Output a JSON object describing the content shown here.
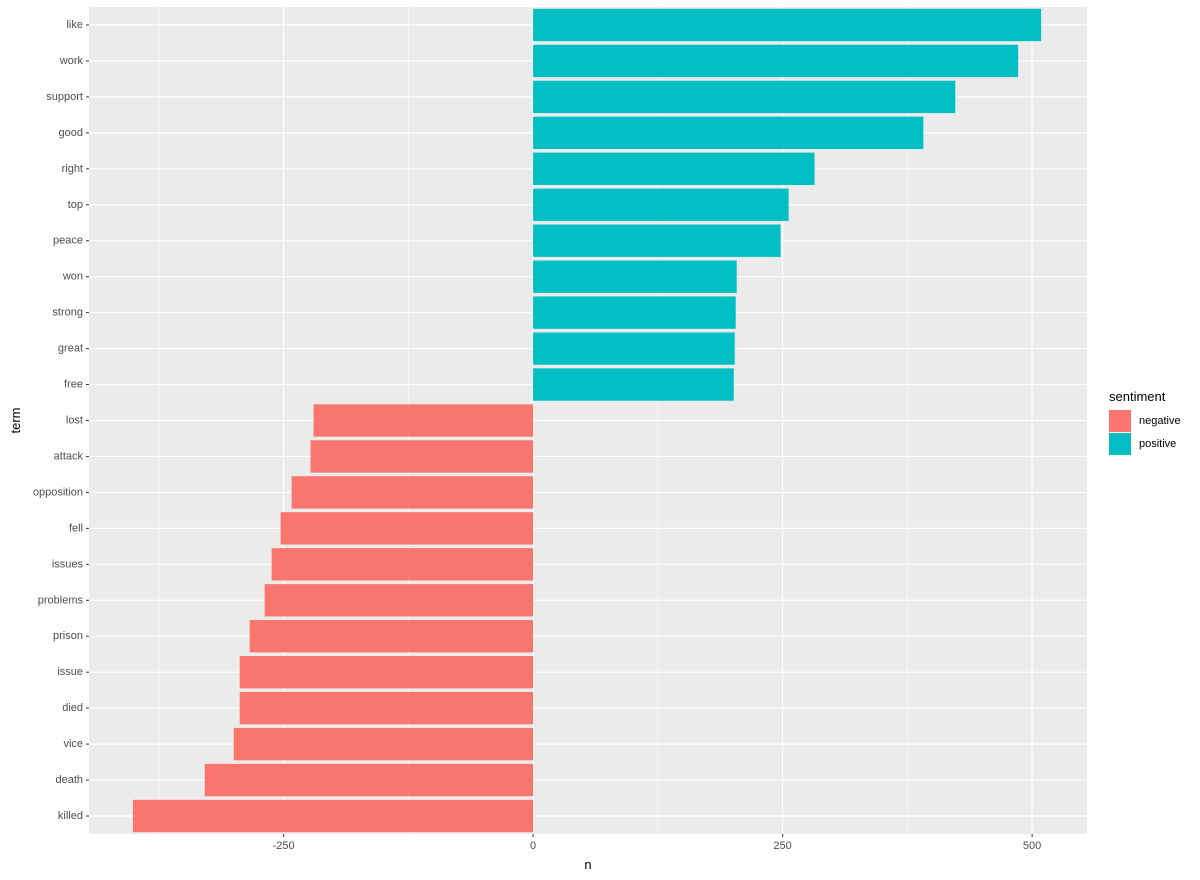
{
  "chart_data": {
    "type": "bar",
    "orientation": "horizontal",
    "xlabel": "n",
    "ylabel": "term",
    "xlim": [
      -445,
      555
    ],
    "x_ticks": [
      -250,
      0,
      250,
      500
    ],
    "x_tick_labels": [
      "-250",
      "0",
      "250",
      "500"
    ],
    "grid": true,
    "categories": [
      "like",
      "work",
      "support",
      "good",
      "right",
      "top",
      "peace",
      "won",
      "strong",
      "great",
      "free",
      "lost",
      "attack",
      "opposition",
      "fell",
      "issues",
      "problems",
      "prison",
      "issue",
      "died",
      "vice",
      "death",
      "killed"
    ],
    "values": [
      509,
      486,
      423,
      391,
      282,
      256,
      248,
      204,
      203,
      202,
      201,
      -220,
      -223,
      -242,
      -253,
      -262,
      -269,
      -284,
      -294,
      -294,
      -300,
      -329,
      -401
    ],
    "sentiment": [
      "positive",
      "positive",
      "positive",
      "positive",
      "positive",
      "positive",
      "positive",
      "positive",
      "positive",
      "positive",
      "positive",
      "negative",
      "negative",
      "negative",
      "negative",
      "negative",
      "negative",
      "negative",
      "negative",
      "negative",
      "negative",
      "negative",
      "negative"
    ],
    "legend": {
      "title": "sentiment",
      "position": "right",
      "entries": [
        {
          "name": "negative",
          "color": "#F8766D"
        },
        {
          "name": "positive",
          "color": "#00BFC4"
        }
      ]
    },
    "colors": {
      "negative": "#F8766D",
      "positive": "#00BFC4",
      "panel_background": "#EBEBEB",
      "grid": "#FFFFFF"
    }
  }
}
